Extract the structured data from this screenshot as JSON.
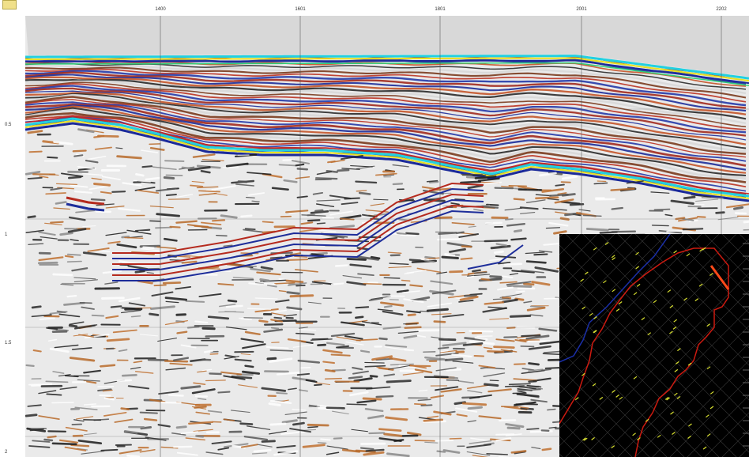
{
  "x_axis": {
    "ticks": [
      "1400",
      "1601",
      "1801",
      "2001",
      "2202"
    ]
  },
  "y_axis": {
    "ticks": [
      "0.5",
      "1",
      "1.5",
      "2"
    ]
  },
  "colors": {
    "section_background": "#eaeaea",
    "sky": "#d8d8d8",
    "basemap_background": "#000000",
    "basemap_outline_red": "#cc1a10",
    "basemap_outline_blue": "#1b2fa8",
    "basemap_line": "#d8e030",
    "basemap_selected_line": "#ff4a1a"
  },
  "icons": {
    "corner": "layer-icon"
  }
}
